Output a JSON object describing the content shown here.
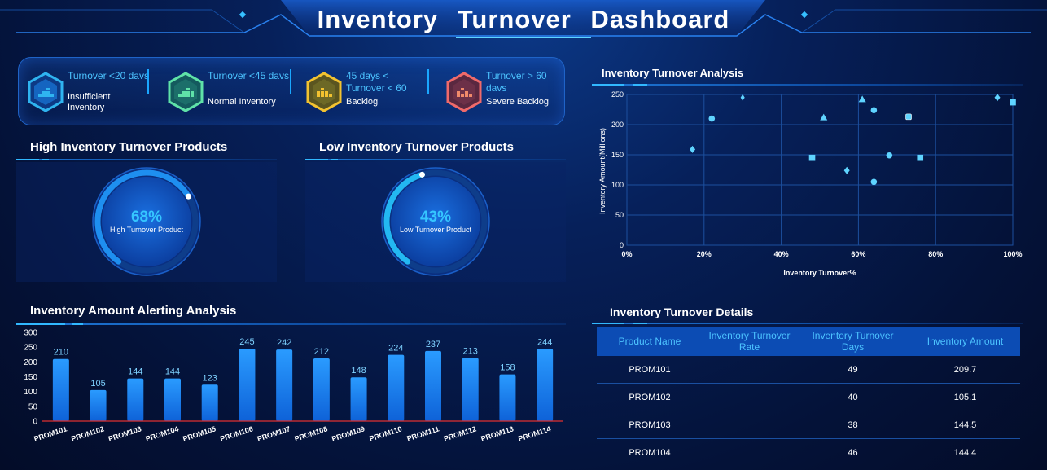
{
  "header": {
    "title": "Inventory  Turnover  Dashboard"
  },
  "legend": [
    {
      "range": "Turnover <20 davs",
      "label": "Insufficient Inventory",
      "color": "#2fb4f0"
    },
    {
      "range": "Turnover <45 davs",
      "label": "Normal Inventory",
      "color": "#5fe2a8"
    },
    {
      "range": "45 days < Turnover < 60",
      "label": "Backlog",
      "color": "#f2c230"
    },
    {
      "range": "Turnover > 60 davs",
      "label": "Severe Backlog",
      "color": "#f06a6a"
    }
  ],
  "high_panel": {
    "title": "High Inventory Turnover Products",
    "percent": "68%",
    "percent_value": 68,
    "label": "High Turnover Product"
  },
  "low_panel": {
    "title": "Low Inventory Turnover Products",
    "percent": "43%",
    "percent_value": 43,
    "label": "Low Turnover Product"
  },
  "bar_panel": {
    "title": "Inventory Amount  Alerting Analysis"
  },
  "scatter_panel": {
    "title": "Inventory Turnover Analysis"
  },
  "table_panel": {
    "title": "Inventory Turnover Details",
    "headers": [
      "Product Name",
      "Inventory Turnover Rate",
      "Inventory Turnover Days",
      "Inventory Amount"
    ],
    "rows": [
      {
        "name": "PROM101",
        "rate": "",
        "days": "49",
        "amount": "209.7"
      },
      {
        "name": "PROM102",
        "rate": "",
        "days": "40",
        "amount": "105.1"
      },
      {
        "name": "PROM103",
        "rate": "",
        "days": "38",
        "amount": "144.5"
      },
      {
        "name": "PROM104",
        "rate": "",
        "days": "46",
        "amount": "144.4"
      }
    ]
  },
  "chart_data": [
    {
      "type": "bar",
      "title": "Inventory Amount  Alerting Analysis",
      "categories": [
        "PROM101",
        "PROM102",
        "PROM103",
        "PROM104",
        "PROM105",
        "PROM106",
        "PROM107",
        "PROM108",
        "PROM109",
        "PROM110",
        "PROM111",
        "PROM112",
        "PROM113",
        "PROM114"
      ],
      "values": [
        210,
        105,
        144,
        144,
        123,
        245,
        242,
        212,
        148,
        224,
        237,
        213,
        158,
        244
      ],
      "yticks": [
        "0",
        "50",
        "100",
        "150",
        "200",
        "250",
        "300"
      ],
      "ylim": [
        0,
        300
      ],
      "xlabel": "",
      "ylabel": "",
      "bar_color": "#1a8cff"
    },
    {
      "type": "scatter",
      "title": "Inventory Turnover Analysis",
      "xlabel": "Inventory Turnover%",
      "ylabel": "Inventory Amount(Millions)",
      "xlim": [
        0,
        100
      ],
      "ylim": [
        0,
        250
      ],
      "xticks": [
        "0%",
        "20%",
        "40%",
        "60%",
        "80%",
        "100%"
      ],
      "yticks": [
        "0",
        "50",
        "100",
        "150",
        "200",
        "250"
      ],
      "points": [
        {
          "x": 17,
          "y": 159,
          "shape": "diamond"
        },
        {
          "x": 22,
          "y": 210,
          "shape": "circle"
        },
        {
          "x": 30,
          "y": 245,
          "shape": "pin"
        },
        {
          "x": 48,
          "y": 145,
          "shape": "square"
        },
        {
          "x": 51,
          "y": 212,
          "shape": "triangle"
        },
        {
          "x": 57,
          "y": 124,
          "shape": "diamond"
        },
        {
          "x": 61,
          "y": 242,
          "shape": "triangle"
        },
        {
          "x": 64,
          "y": 224,
          "shape": "circle"
        },
        {
          "x": 64,
          "y": 105,
          "shape": "circle"
        },
        {
          "x": 68,
          "y": 149,
          "shape": "circle"
        },
        {
          "x": 73,
          "y": 213,
          "shape": "roundsquare"
        },
        {
          "x": 76,
          "y": 145,
          "shape": "square"
        },
        {
          "x": 96,
          "y": 245,
          "shape": "diamond"
        },
        {
          "x": 100,
          "y": 237,
          "shape": "square"
        }
      ],
      "marker_color": "#5fd4ff"
    }
  ]
}
